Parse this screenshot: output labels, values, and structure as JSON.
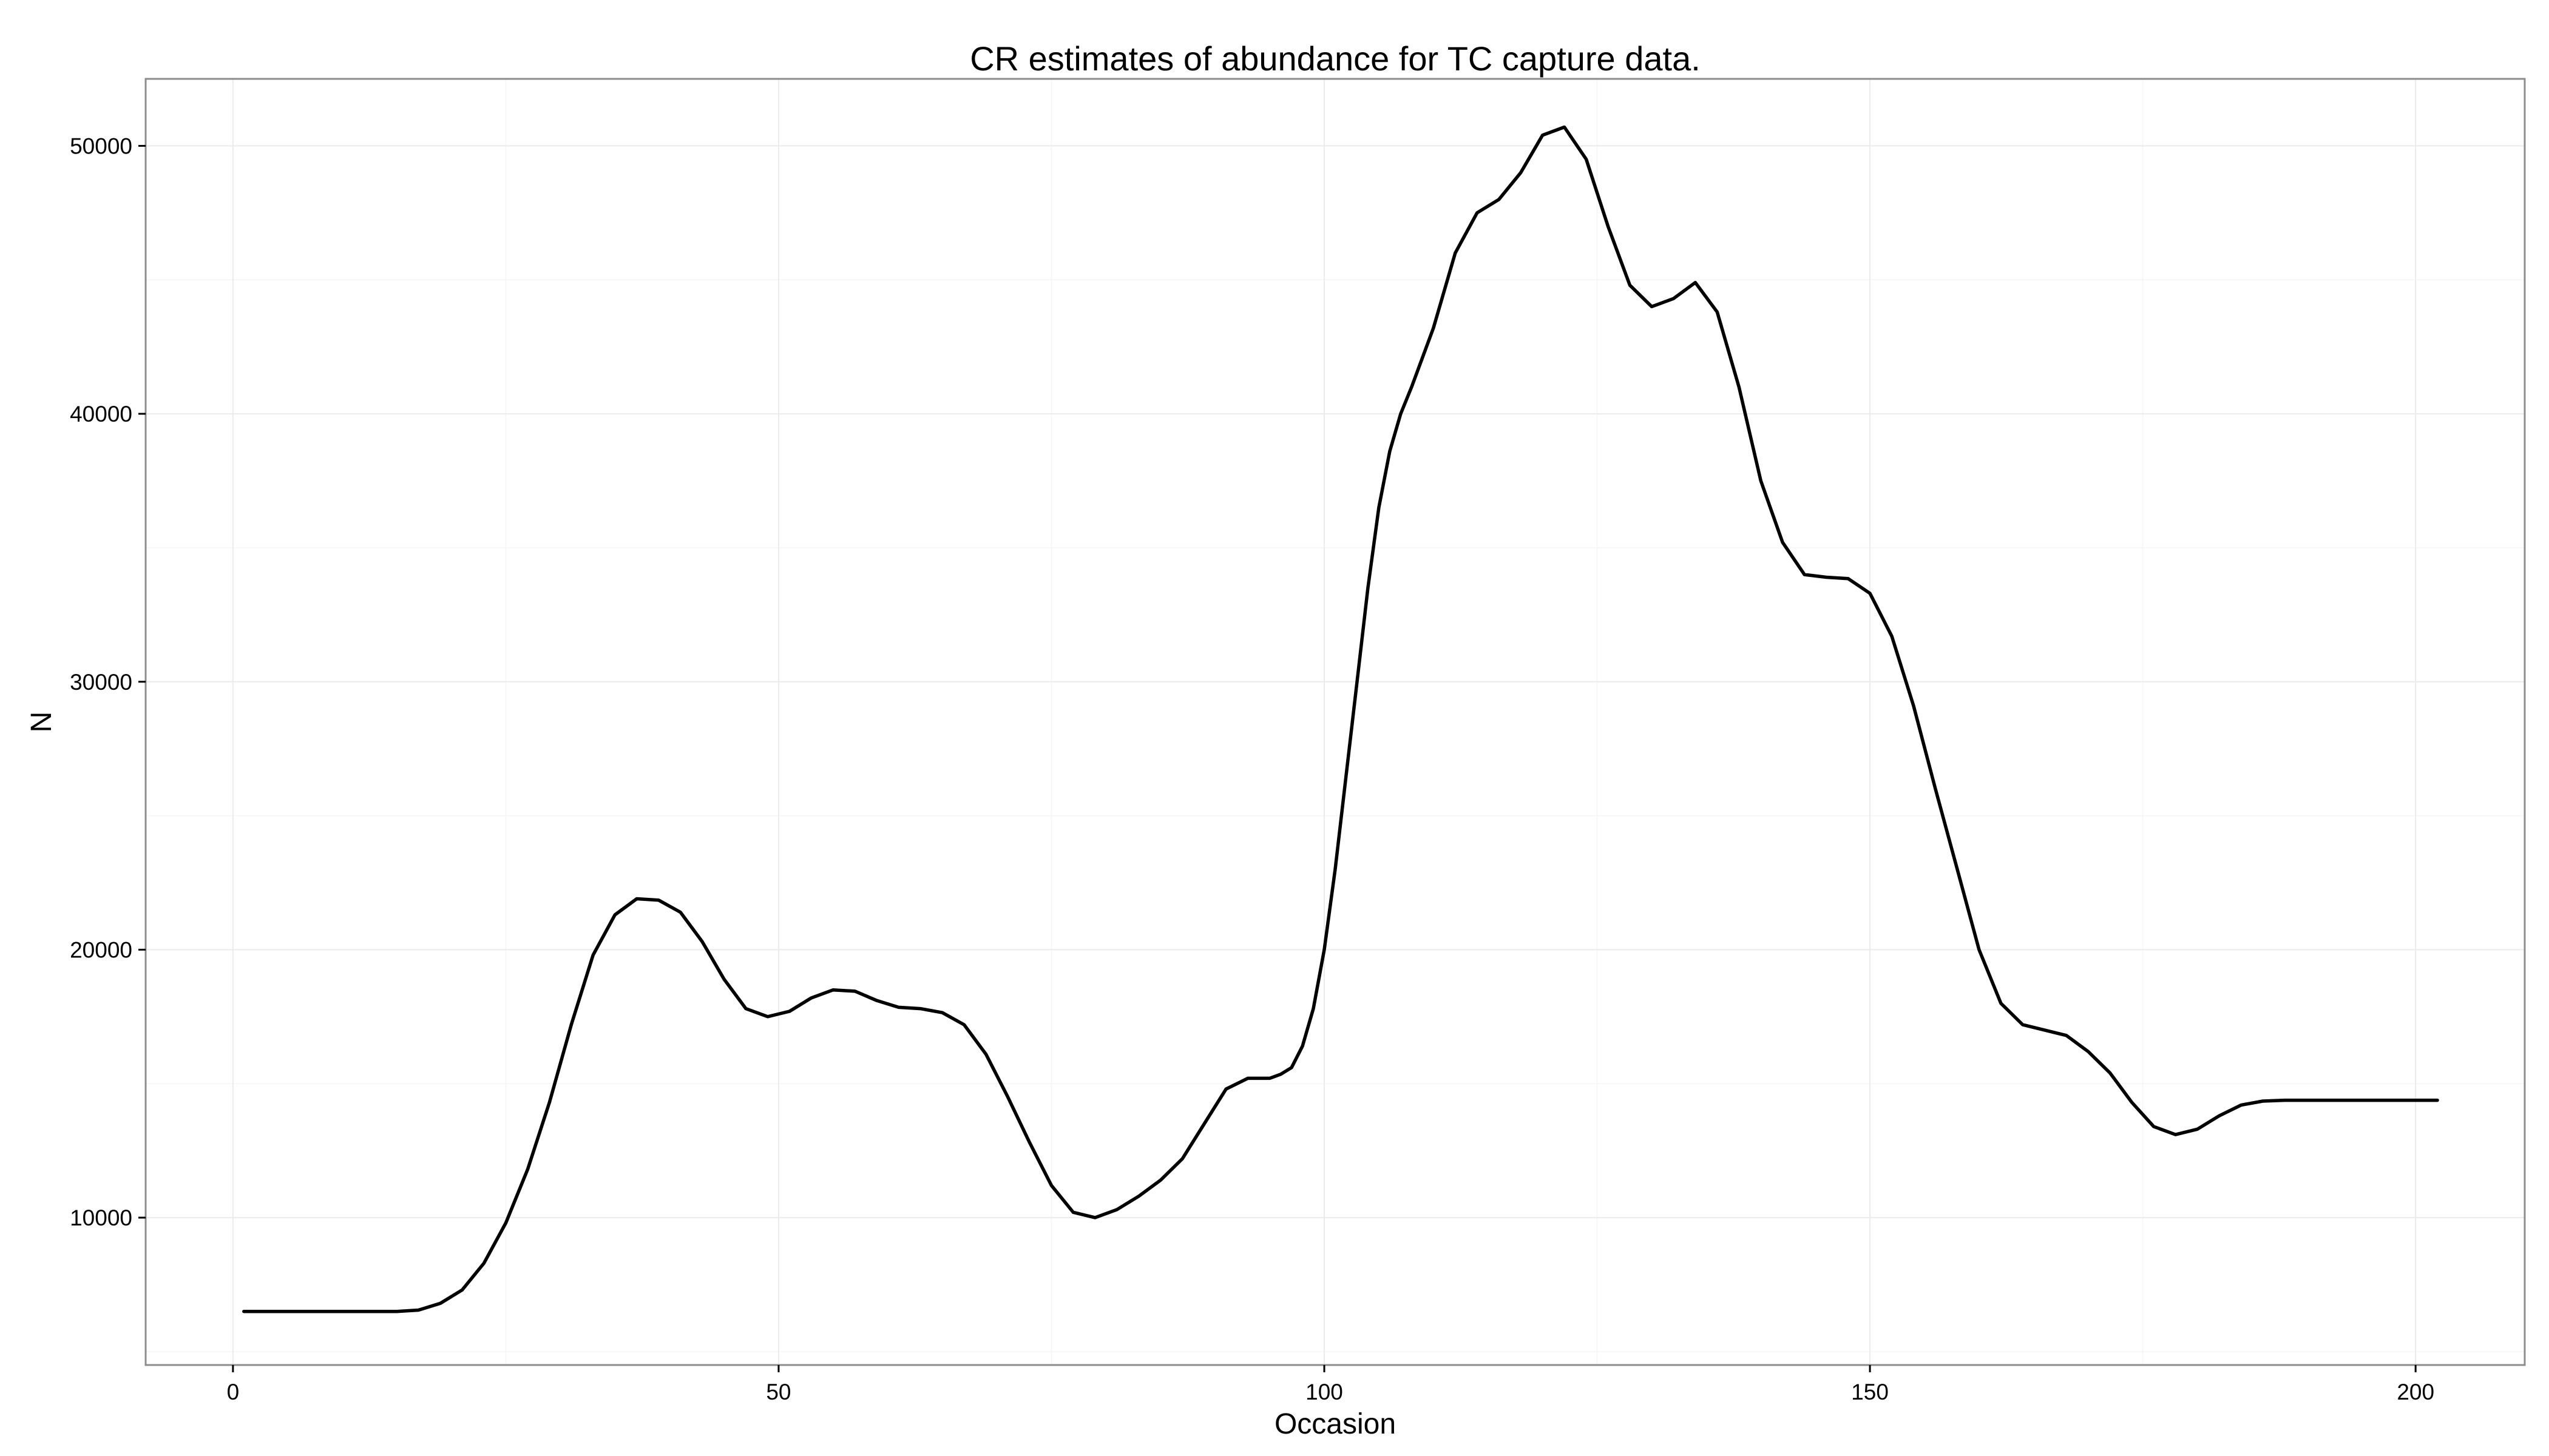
{
  "chart_data": {
    "type": "line",
    "title": "CR estimates of abundance for TC capture data.",
    "xlabel": "Occasion",
    "ylabel": "N",
    "xlim": [
      -8,
      210
    ],
    "ylim": [
      4500,
      52500
    ],
    "x_ticks": [
      0,
      50,
      100,
      150,
      200
    ],
    "y_ticks": [
      10000,
      20000,
      30000,
      40000,
      50000
    ],
    "x_tick_labels": [
      "0",
      "50",
      "100",
      "150",
      "200"
    ],
    "y_tick_labels": [
      "10000",
      "20000",
      "30000",
      "40000",
      "50000"
    ],
    "grid": true,
    "legend": "none",
    "series": [
      {
        "color": "#000000",
        "x": [
          1,
          5,
          10,
          15,
          17,
          19,
          21,
          23,
          25,
          27,
          29,
          31,
          33,
          35,
          37,
          39,
          41,
          43,
          45,
          47,
          49,
          51,
          53,
          55,
          57,
          59,
          61,
          63,
          65,
          67,
          69,
          71,
          73,
          75,
          77,
          79,
          81,
          83,
          85,
          87,
          89,
          91,
          93,
          95,
          96,
          97,
          98,
          99,
          100,
          101,
          102,
          103,
          104,
          105,
          106,
          107,
          108,
          110,
          112,
          114,
          116,
          118,
          120,
          122,
          124,
          126,
          128,
          130,
          132,
          134,
          136,
          138,
          140,
          142,
          144,
          146,
          148,
          150,
          152,
          154,
          156,
          158,
          160,
          162,
          164,
          166,
          168,
          170,
          172,
          174,
          176,
          178,
          180,
          182,
          184,
          186,
          188,
          190,
          195,
          202
        ],
        "y": [
          6500,
          6500,
          6500,
          6500,
          6550,
          6800,
          7300,
          8300,
          9800,
          11800,
          14300,
          17200,
          19800,
          21300,
          21900,
          21850,
          21400,
          20300,
          18900,
          17800,
          17500,
          17700,
          18200,
          18500,
          18450,
          18100,
          17850,
          17800,
          17650,
          17200,
          16100,
          14500,
          12800,
          11200,
          10200,
          10000,
          10300,
          10800,
          11400,
          12200,
          13500,
          14800,
          15200,
          15200,
          15350,
          15600,
          16400,
          17800,
          20000,
          23000,
          26500,
          30000,
          33500,
          36500,
          38600,
          40000,
          41000,
          43200,
          46000,
          47500,
          48000,
          49000,
          50400,
          50700,
          49500,
          47000,
          44800,
          44000,
          44300,
          44900,
          43800,
          41000,
          37500,
          35200,
          34000,
          33900,
          33850,
          33300,
          31700,
          29100,
          26000,
          23000,
          20000,
          18000,
          17200,
          17000,
          16800,
          16200,
          15400,
          14300,
          13400,
          13100,
          13300,
          13800,
          14200,
          14350,
          14380,
          14380,
          14380,
          14380
        ]
      }
    ]
  }
}
